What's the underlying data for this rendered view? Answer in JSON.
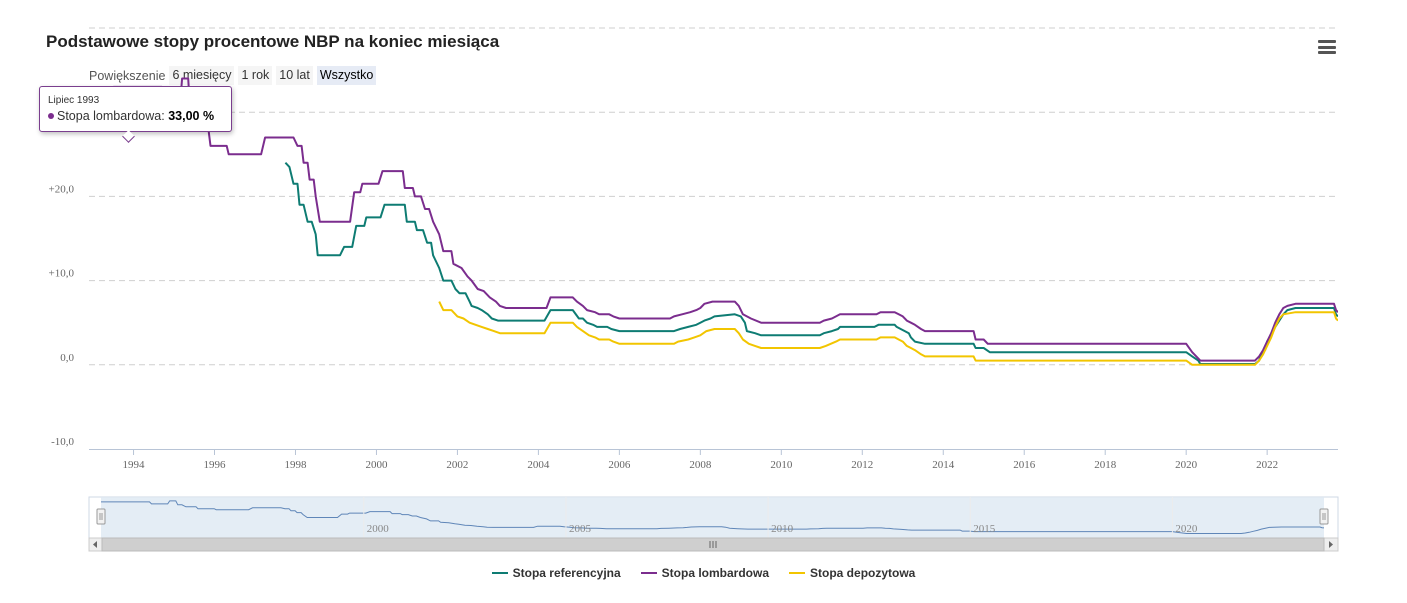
{
  "title": "Podstawowe stopy procentowe NBP na koniec miesiąca",
  "menu_icon": "hamburger-menu-icon",
  "zoom": {
    "label": "Powiększenie",
    "buttons": [
      "6 miesięcy",
      "1 rok",
      "10 lat",
      "Wszystko"
    ],
    "active": "Wszystko"
  },
  "tooltip": {
    "date": "Lipiec 1993",
    "series": "Stopa lombardowa",
    "value": "33,00 %",
    "color": "#7b2d8e"
  },
  "navigator": {
    "labels": [
      "2000",
      "2005",
      "2010",
      "2015",
      "2020"
    ],
    "scroll_icon": "scrollbar-grip-icon"
  },
  "chart_data": {
    "type": "line",
    "x_unit": "year",
    "ylim": [
      -10,
      40
    ],
    "y_ticks": [
      "-10,0",
      "0,0",
      "+10,0",
      "+20,0",
      "+30,0"
    ],
    "x_ticks": [
      "1994",
      "1996",
      "1998",
      "2000",
      "2002",
      "2004",
      "2006",
      "2008",
      "2010",
      "2012",
      "2014",
      "2016",
      "2018",
      "2020",
      "2022"
    ],
    "xlim": [
      1992.9,
      2023.75
    ],
    "grid": true,
    "legend_position": "bottom",
    "series": [
      {
        "name": "Stopa referencyjna",
        "color": "#0e7c73",
        "points": [
          [
            1997.75,
            24
          ],
          [
            1997.85,
            23.5
          ],
          [
            1997.95,
            21.5
          ],
          [
            1998.05,
            21.5
          ],
          [
            1998.1,
            19
          ],
          [
            1998.2,
            19
          ],
          [
            1998.3,
            17
          ],
          [
            1998.4,
            17
          ],
          [
            1998.5,
            15.5
          ],
          [
            1998.55,
            13
          ],
          [
            1999.0,
            13
          ],
          [
            1999.1,
            13
          ],
          [
            1999.2,
            14
          ],
          [
            1999.4,
            14
          ],
          [
            1999.5,
            16.5
          ],
          [
            1999.7,
            16.5
          ],
          [
            1999.75,
            17.5
          ],
          [
            2000.1,
            17.5
          ],
          [
            2000.2,
            19
          ],
          [
            2000.7,
            19
          ],
          [
            2000.75,
            17
          ],
          [
            2000.95,
            17
          ],
          [
            2001.0,
            16
          ],
          [
            2001.15,
            16
          ],
          [
            2001.25,
            14.5
          ],
          [
            2001.35,
            14.5
          ],
          [
            2001.4,
            13
          ],
          [
            2001.55,
            11.5
          ],
          [
            2001.65,
            10
          ],
          [
            2001.85,
            10
          ],
          [
            2001.95,
            9
          ],
          [
            2002.05,
            8.5
          ],
          [
            2002.2,
            8.5
          ],
          [
            2002.3,
            7.5
          ],
          [
            2002.35,
            7
          ],
          [
            2002.5,
            6.75
          ],
          [
            2002.6,
            6.5
          ],
          [
            2002.75,
            6
          ],
          [
            2002.85,
            5.5
          ],
          [
            2003.0,
            5.25
          ],
          [
            2004.0,
            5.25
          ],
          [
            2004.15,
            5.25
          ],
          [
            2004.3,
            6.5
          ],
          [
            2004.85,
            6.5
          ],
          [
            2005.0,
            5.5
          ],
          [
            2005.1,
            5.5
          ],
          [
            2005.2,
            5
          ],
          [
            2005.35,
            4.75
          ],
          [
            2005.45,
            4.5
          ],
          [
            2005.7,
            4.5
          ],
          [
            2005.8,
            4.25
          ],
          [
            2006.0,
            4
          ],
          [
            2007.35,
            4
          ],
          [
            2007.5,
            4.25
          ],
          [
            2007.7,
            4.5
          ],
          [
            2007.9,
            4.75
          ],
          [
            2008.0,
            5
          ],
          [
            2008.1,
            5.25
          ],
          [
            2008.25,
            5.5
          ],
          [
            2008.35,
            5.75
          ],
          [
            2008.85,
            6
          ],
          [
            2009.0,
            5.75
          ],
          [
            2009.1,
            5
          ],
          [
            2009.15,
            4
          ],
          [
            2009.35,
            3.75
          ],
          [
            2009.5,
            3.5
          ],
          [
            2010.95,
            3.5
          ],
          [
            2011.05,
            3.75
          ],
          [
            2011.25,
            4
          ],
          [
            2011.4,
            4.25
          ],
          [
            2011.45,
            4.5
          ],
          [
            2012.3,
            4.5
          ],
          [
            2012.4,
            4.75
          ],
          [
            2012.8,
            4.75
          ],
          [
            2012.85,
            4.5
          ],
          [
            2012.95,
            4.25
          ],
          [
            2013.05,
            4
          ],
          [
            2013.15,
            3.75
          ],
          [
            2013.2,
            3.25
          ],
          [
            2013.3,
            2.75
          ],
          [
            2013.55,
            2.5
          ],
          [
            2014.75,
            2.5
          ],
          [
            2014.8,
            2
          ],
          [
            2015.0,
            2
          ],
          [
            2015.15,
            1.5
          ],
          [
            2020.0,
            1.5
          ],
          [
            2020.15,
            1
          ],
          [
            2020.3,
            0.5
          ],
          [
            2020.35,
            0.1
          ],
          [
            2021.7,
            0.1
          ],
          [
            2021.8,
            0.5
          ],
          [
            2021.85,
            1.25
          ],
          [
            2021.95,
            1.75
          ],
          [
            2022.0,
            2.75
          ],
          [
            2022.1,
            3.5
          ],
          [
            2022.2,
            4.5
          ],
          [
            2022.3,
            5.25
          ],
          [
            2022.4,
            6
          ],
          [
            2022.5,
            6.5
          ],
          [
            2022.7,
            6.75
          ],
          [
            2023.65,
            6.75
          ],
          [
            2023.7,
            6
          ],
          [
            2023.75,
            5.75
          ]
        ]
      },
      {
        "name": "Stopa lombardowa",
        "color": "#7b2d8e",
        "points": [
          [
            1993.5,
            33
          ],
          [
            1993.7,
            33
          ],
          [
            1994.7,
            33
          ],
          [
            1994.75,
            31
          ],
          [
            1995.0,
            31
          ],
          [
            1995.15,
            31
          ],
          [
            1995.2,
            34
          ],
          [
            1995.35,
            34
          ],
          [
            1995.4,
            30
          ],
          [
            1995.5,
            30
          ],
          [
            1995.6,
            28
          ],
          [
            1995.85,
            28
          ],
          [
            1995.9,
            26
          ],
          [
            1996.3,
            26
          ],
          [
            1996.35,
            25
          ],
          [
            1997.15,
            25
          ],
          [
            1997.25,
            27
          ],
          [
            1997.95,
            27
          ],
          [
            1998.05,
            26
          ],
          [
            1998.15,
            26
          ],
          [
            1998.2,
            24
          ],
          [
            1998.3,
            24
          ],
          [
            1998.35,
            22
          ],
          [
            1998.45,
            22
          ],
          [
            1998.5,
            20
          ],
          [
            1998.6,
            17
          ],
          [
            1999.35,
            17
          ],
          [
            1999.45,
            20.5
          ],
          [
            1999.6,
            20.5
          ],
          [
            1999.65,
            21.5
          ],
          [
            1999.95,
            21.5
          ],
          [
            2000.05,
            21.5
          ],
          [
            2000.15,
            23
          ],
          [
            2000.65,
            23
          ],
          [
            2000.7,
            21
          ],
          [
            2000.9,
            21
          ],
          [
            2000.95,
            20
          ],
          [
            2001.1,
            20
          ],
          [
            2001.2,
            18.5
          ],
          [
            2001.3,
            18.5
          ],
          [
            2001.4,
            17
          ],
          [
            2001.55,
            15.5
          ],
          [
            2001.65,
            13.5
          ],
          [
            2001.85,
            13.5
          ],
          [
            2001.9,
            12
          ],
          [
            2002.1,
            11.5
          ],
          [
            2002.25,
            10.5
          ],
          [
            2002.35,
            10
          ],
          [
            2002.5,
            9
          ],
          [
            2002.65,
            8.75
          ],
          [
            2002.8,
            8
          ],
          [
            2002.95,
            7.5
          ],
          [
            2003.05,
            7
          ],
          [
            2003.2,
            6.75
          ],
          [
            2004.1,
            6.75
          ],
          [
            2004.2,
            6.75
          ],
          [
            2004.3,
            8
          ],
          [
            2004.85,
            8
          ],
          [
            2004.95,
            7.5
          ],
          [
            2005.1,
            7
          ],
          [
            2005.2,
            6.5
          ],
          [
            2005.4,
            6.25
          ],
          [
            2005.5,
            6
          ],
          [
            2005.75,
            6
          ],
          [
            2005.85,
            5.75
          ],
          [
            2006.0,
            5.5
          ],
          [
            2007.25,
            5.5
          ],
          [
            2007.35,
            5.75
          ],
          [
            2007.55,
            6
          ],
          [
            2007.75,
            6.25
          ],
          [
            2007.9,
            6.5
          ],
          [
            2008.0,
            6.75
          ],
          [
            2008.1,
            7.25
          ],
          [
            2008.3,
            7.5
          ],
          [
            2008.85,
            7.5
          ],
          [
            2008.95,
            7
          ],
          [
            2009.05,
            6
          ],
          [
            2009.25,
            5.5
          ],
          [
            2009.5,
            5
          ],
          [
            2010.95,
            5
          ],
          [
            2011.05,
            5.25
          ],
          [
            2011.25,
            5.5
          ],
          [
            2011.35,
            5.75
          ],
          [
            2011.45,
            6
          ],
          [
            2012.35,
            6
          ],
          [
            2012.45,
            6.25
          ],
          [
            2012.8,
            6.25
          ],
          [
            2012.9,
            6
          ],
          [
            2013.0,
            5.75
          ],
          [
            2013.1,
            5.25
          ],
          [
            2013.2,
            5
          ],
          [
            2013.3,
            4.75
          ],
          [
            2013.45,
            4.25
          ],
          [
            2013.55,
            4
          ],
          [
            2014.75,
            4
          ],
          [
            2014.8,
            3
          ],
          [
            2015.0,
            3
          ],
          [
            2015.1,
            2.5
          ],
          [
            2020.0,
            2.5
          ],
          [
            2020.15,
            1.5
          ],
          [
            2020.35,
            0.5
          ],
          [
            2021.7,
            0.5
          ],
          [
            2021.8,
            1
          ],
          [
            2021.9,
            1.75
          ],
          [
            2022.0,
            2.75
          ],
          [
            2022.1,
            3.75
          ],
          [
            2022.2,
            5
          ],
          [
            2022.3,
            6
          ],
          [
            2022.4,
            6.75
          ],
          [
            2022.5,
            7
          ],
          [
            2022.7,
            7.25
          ],
          [
            2023.65,
            7.25
          ],
          [
            2023.7,
            6.5
          ],
          [
            2023.75,
            6.25
          ]
        ]
      },
      {
        "name": "Stopa depozytowa",
        "color": "#f2c500",
        "points": [
          [
            2001.55,
            7.5
          ],
          [
            2001.65,
            6.5
          ],
          [
            2001.85,
            6.5
          ],
          [
            2002.0,
            5.75
          ],
          [
            2002.15,
            5.5
          ],
          [
            2002.3,
            5
          ],
          [
            2002.45,
            4.75
          ],
          [
            2002.6,
            4.5
          ],
          [
            2002.75,
            4.25
          ],
          [
            2002.9,
            4
          ],
          [
            2003.05,
            3.75
          ],
          [
            2004.15,
            3.75
          ],
          [
            2004.3,
            5
          ],
          [
            2004.85,
            5
          ],
          [
            2004.95,
            4.5
          ],
          [
            2005.1,
            4
          ],
          [
            2005.25,
            3.5
          ],
          [
            2005.4,
            3.25
          ],
          [
            2005.5,
            3
          ],
          [
            2005.75,
            3
          ],
          [
            2005.85,
            2.75
          ],
          [
            2006.0,
            2.5
          ],
          [
            2007.35,
            2.5
          ],
          [
            2007.45,
            2.75
          ],
          [
            2007.7,
            3
          ],
          [
            2007.85,
            3.25
          ],
          [
            2008.0,
            3.5
          ],
          [
            2008.15,
            4
          ],
          [
            2008.35,
            4.25
          ],
          [
            2008.85,
            4.25
          ],
          [
            2008.95,
            3.75
          ],
          [
            2009.05,
            3
          ],
          [
            2009.2,
            2.5
          ],
          [
            2009.35,
            2.25
          ],
          [
            2009.5,
            2
          ],
          [
            2010.95,
            2
          ],
          [
            2011.1,
            2.25
          ],
          [
            2011.35,
            2.75
          ],
          [
            2011.45,
            3
          ],
          [
            2012.35,
            3
          ],
          [
            2012.45,
            3.25
          ],
          [
            2012.8,
            3.25
          ],
          [
            2012.9,
            3
          ],
          [
            2013.0,
            2.75
          ],
          [
            2013.1,
            2.25
          ],
          [
            2013.2,
            2
          ],
          [
            2013.3,
            1.75
          ],
          [
            2013.45,
            1.25
          ],
          [
            2013.55,
            1
          ],
          [
            2014.75,
            1
          ],
          [
            2014.8,
            0.5
          ],
          [
            2020.0,
            0.5
          ],
          [
            2020.15,
            0
          ],
          [
            2021.7,
            0
          ],
          [
            2021.8,
            0.5
          ],
          [
            2021.9,
            1.25
          ],
          [
            2022.0,
            2.25
          ],
          [
            2022.1,
            3.25
          ],
          [
            2022.2,
            4.5
          ],
          [
            2022.3,
            5.5
          ],
          [
            2022.4,
            6
          ],
          [
            2022.7,
            6.25
          ],
          [
            2023.65,
            6.25
          ],
          [
            2023.7,
            5.5
          ],
          [
            2023.75,
            5.25
          ]
        ]
      }
    ]
  }
}
